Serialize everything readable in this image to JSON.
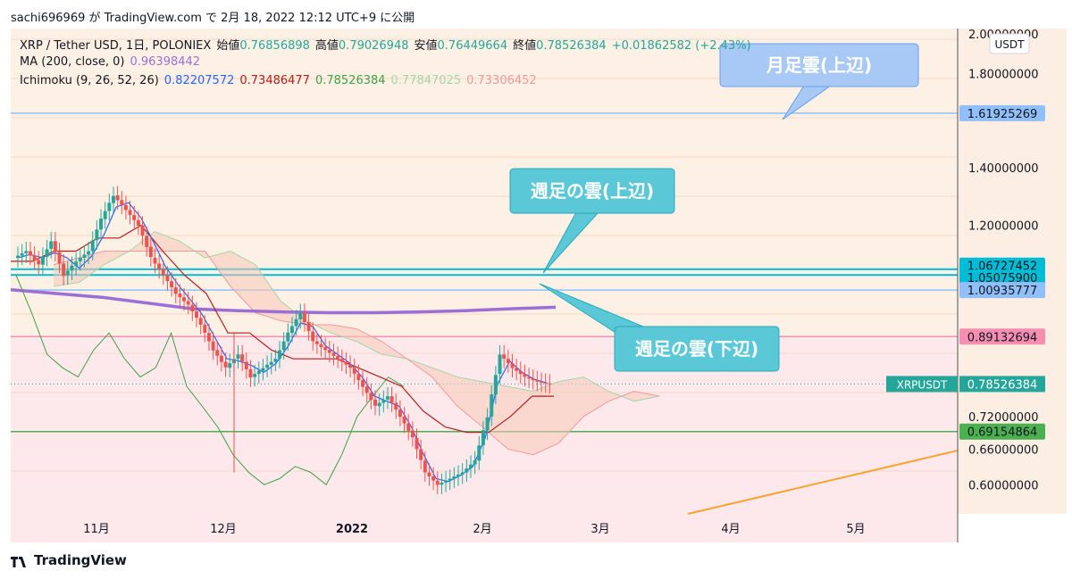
{
  "header": "sachi696969 が TradingView.com で 2月 18, 2022 12:12 UTC+9 に公開",
  "footer": {
    "logo_text": "TradingView",
    "logo_icon": "tradingview-logo-icon"
  },
  "legend": {
    "line1": {
      "symbol": "XRP / Tether USD, 1日, POLONIEX",
      "open_label": "始値",
      "open": "0.76856898",
      "high_label": "高値",
      "high": "0.79026948",
      "low_label": "安値",
      "low": "0.76449664",
      "close_label": "終値",
      "close": "0.78526384",
      "change": "+0.01862582 (+2.43%)"
    },
    "line2": {
      "label": "MA (200, close, 0)",
      "value": "0.96398442"
    },
    "line3": {
      "label": "Ichimoku (9, 26, 52, 26)",
      "values": [
        "0.82207572",
        "0.73486477",
        "0.78526384",
        "0.77847025",
        "0.73306452"
      ]
    }
  },
  "colors": {
    "bg_upper": "#fdf0e4",
    "bg_lower": "#fde9ec",
    "up": "#26a69a",
    "down": "#ef5350",
    "ma": "#9c6fd6",
    "tenkan": "#2962ff",
    "kijun": "#b71c1c",
    "chikou": "#43a047",
    "spanA": "#a5d6a7",
    "spanB": "#ef9a9a",
    "cloud_fill": "#f8c8b8"
  },
  "chart_data": {
    "type": "candlestick",
    "currency": "USDT",
    "x_ticks": [
      "11月",
      "12月",
      "2022",
      "2月",
      "3月",
      "4月",
      "5月"
    ],
    "y_ticks": [
      2.0,
      1.8,
      1.4,
      1.2,
      0.72,
      0.66,
      0.6
    ],
    "y_tick_labels": [
      "2.00000000",
      "1.80000000",
      "1.40000000",
      "1.20000000",
      "0.72000000",
      "0.66000000",
      "0.60000000"
    ],
    "ylim": [
      0.555,
      2.03
    ],
    "y_scale": "log",
    "horizontal_lines": [
      {
        "value": 1.61925269,
        "label": "1.61925269",
        "color": "#90bff9",
        "text_color": "#131722"
      },
      {
        "value": 1.06727452,
        "label": "1.06727452",
        "color": "#00bcd4",
        "text_color": "#131722"
      },
      {
        "value": 1.050759,
        "label": "1.05075900",
        "color": "#00bcd4",
        "text_color": "#131722"
      },
      {
        "value": 1.00935777,
        "label": "1.00935777",
        "color": "#90bff9",
        "text_color": "#131722"
      },
      {
        "value": 0.89132694,
        "label": "0.89132694",
        "color": "#f48fb1",
        "text_color": "#131722"
      },
      {
        "value": 0.69154864,
        "label": "0.69154864",
        "color": "#4caf50",
        "text_color": "#131722"
      }
    ],
    "price_tag": {
      "symbol": "XRPUSDT",
      "value": 0.78526384,
      "label": "0.78526384",
      "color": "#26a69a"
    },
    "ma200": [
      1.01,
      1.0,
      0.99,
      0.975,
      0.96,
      0.955,
      0.952,
      0.95,
      0.95,
      0.952,
      0.955,
      0.96,
      0.964
    ],
    "candles_close": [
      1.1,
      1.12,
      1.08,
      1.15,
      1.05,
      1.09,
      1.12,
      1.22,
      1.3,
      1.25,
      1.2,
      1.1,
      1.05,
      1.0,
      0.97,
      0.92,
      0.86,
      0.82,
      0.85,
      0.8,
      0.82,
      0.84,
      0.9,
      0.95,
      0.88,
      0.86,
      0.84,
      0.82,
      0.78,
      0.74,
      0.76,
      0.72,
      0.68,
      0.62,
      0.6,
      0.61,
      0.62,
      0.64,
      0.72,
      0.85,
      0.82,
      0.8,
      0.79,
      0.785
    ],
    "annotations": [
      {
        "text": "月足雲(上辺)",
        "color": "#a8c8f6",
        "border": "#6aa0ee"
      },
      {
        "text": "週足の雲(上辺)",
        "color": "#5bc8d8",
        "border": "#2aa8bd"
      },
      {
        "text": "週足の雲(下辺)",
        "color": "#5bc8d8",
        "border": "#2aa8bd"
      }
    ]
  }
}
